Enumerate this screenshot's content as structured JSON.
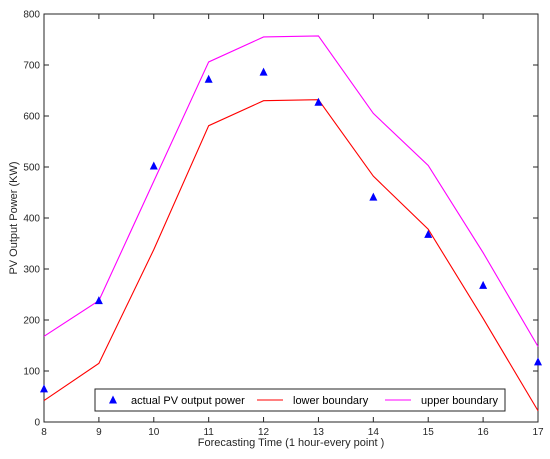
{
  "chart_data": {
    "type": "line",
    "xlabel": "Forecasting Time (1 hour-every point )",
    "ylabel": "PV Output Power (KW)",
    "xlim": [
      8,
      17
    ],
    "ylim": [
      0,
      800
    ],
    "xticks": [
      8,
      9,
      10,
      11,
      12,
      13,
      14,
      15,
      16,
      17
    ],
    "yticks": [
      0,
      100,
      200,
      300,
      400,
      500,
      600,
      700,
      800
    ],
    "grid": false,
    "legend_position": "bottom",
    "x": [
      8,
      9,
      10,
      11,
      12,
      13,
      14,
      15,
      16,
      17
    ],
    "series": [
      {
        "name": "actual PV output power",
        "kind": "scatter",
        "marker": "triangle",
        "color": "#0000ff",
        "values": [
          65,
          238,
          502,
          672,
          686,
          627,
          441,
          368,
          268,
          118
        ]
      },
      {
        "name": "lower boundary",
        "kind": "line",
        "color": "#ff0000",
        "values": [
          42,
          115,
          338,
          581,
          630,
          632,
          482,
          378,
          203,
          22
        ]
      },
      {
        "name": "upper boundary",
        "kind": "line",
        "color": "#ff00ff",
        "values": [
          168,
          238,
          472,
          706,
          755,
          757,
          605,
          503,
          332,
          148
        ]
      }
    ]
  }
}
